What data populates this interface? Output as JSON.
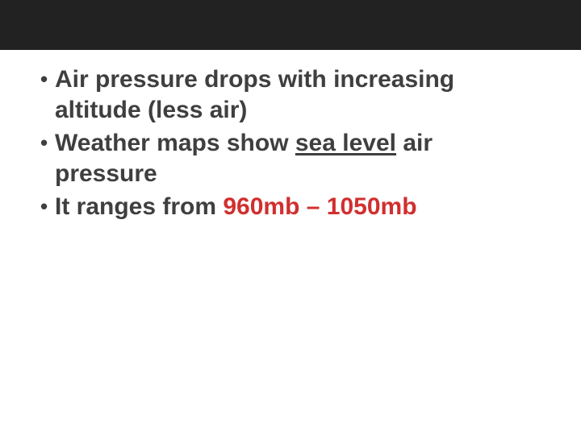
{
  "slide": {
    "header_bar_color": "#222222",
    "background_color": "#ffffff",
    "text_color": "#3f3f3f",
    "accent_color": "#d12f2f",
    "font_size_pt": 22,
    "font_weight": 700,
    "bullets": [
      {
        "segments": [
          {
            "text": "Air pressure drops with increasing altitude (less air)"
          }
        ]
      },
      {
        "segments": [
          {
            "text": "Weather maps show "
          },
          {
            "text": "sea level",
            "underline": true
          },
          {
            "text": " air pressure"
          }
        ]
      },
      {
        "segments": [
          {
            "text": "It ranges from "
          },
          {
            "text": "960mb – 1050mb",
            "color": "accent"
          }
        ]
      }
    ]
  },
  "bullet_glyph": "•"
}
